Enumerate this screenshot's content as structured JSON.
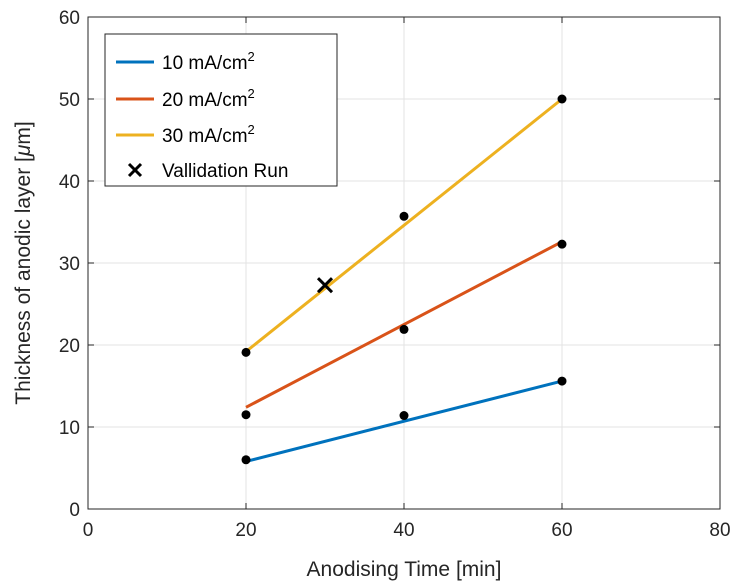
{
  "chart_data": {
    "type": "line",
    "title": "",
    "xlabel": "Anodising Time [min]",
    "ylabel_main": "Thickness of anodic layer [",
    "ylabel_mu": "μ",
    "ylabel_end": "m]",
    "xlim": [
      0,
      80
    ],
    "ylim": [
      0,
      60
    ],
    "x_ticks": [
      0,
      20,
      40,
      60,
      80
    ],
    "y_ticks": [
      0,
      10,
      20,
      30,
      40,
      50,
      60
    ],
    "x_tick_labels": [
      "0",
      "20",
      "40",
      "60",
      "80"
    ],
    "y_tick_labels": [
      "0",
      "10",
      "20",
      "30",
      "40",
      "50",
      "60"
    ],
    "grid": true,
    "legend_position": "top-left",
    "series": [
      {
        "name_main": "10 mA/cm",
        "name_sup": "2",
        "color": "#0072BD",
        "fit_x": [
          20,
          60
        ],
        "fit_y": [
          5.8,
          15.6
        ],
        "points": [
          [
            20,
            6.0
          ],
          [
            40,
            11.4
          ],
          [
            60,
            15.6
          ]
        ]
      },
      {
        "name_main": "20 mA/cm",
        "name_sup": "2",
        "color": "#D95319",
        "fit_x": [
          20,
          60
        ],
        "fit_y": [
          12.4,
          32.6
        ],
        "points": [
          [
            20,
            11.5
          ],
          [
            40,
            21.9
          ],
          [
            60,
            32.3
          ]
        ]
      },
      {
        "name_main": "30 mA/cm",
        "name_sup": "2",
        "color": "#EDB120",
        "fit_x": [
          20,
          60
        ],
        "fit_y": [
          19.2,
          50.0
        ],
        "points": [
          [
            20,
            19.1
          ],
          [
            40,
            35.7
          ],
          [
            60,
            50.0
          ]
        ]
      }
    ],
    "validation": {
      "name": "Vallidation Run",
      "x": 30,
      "y": 27.3,
      "color": "#000000"
    }
  }
}
